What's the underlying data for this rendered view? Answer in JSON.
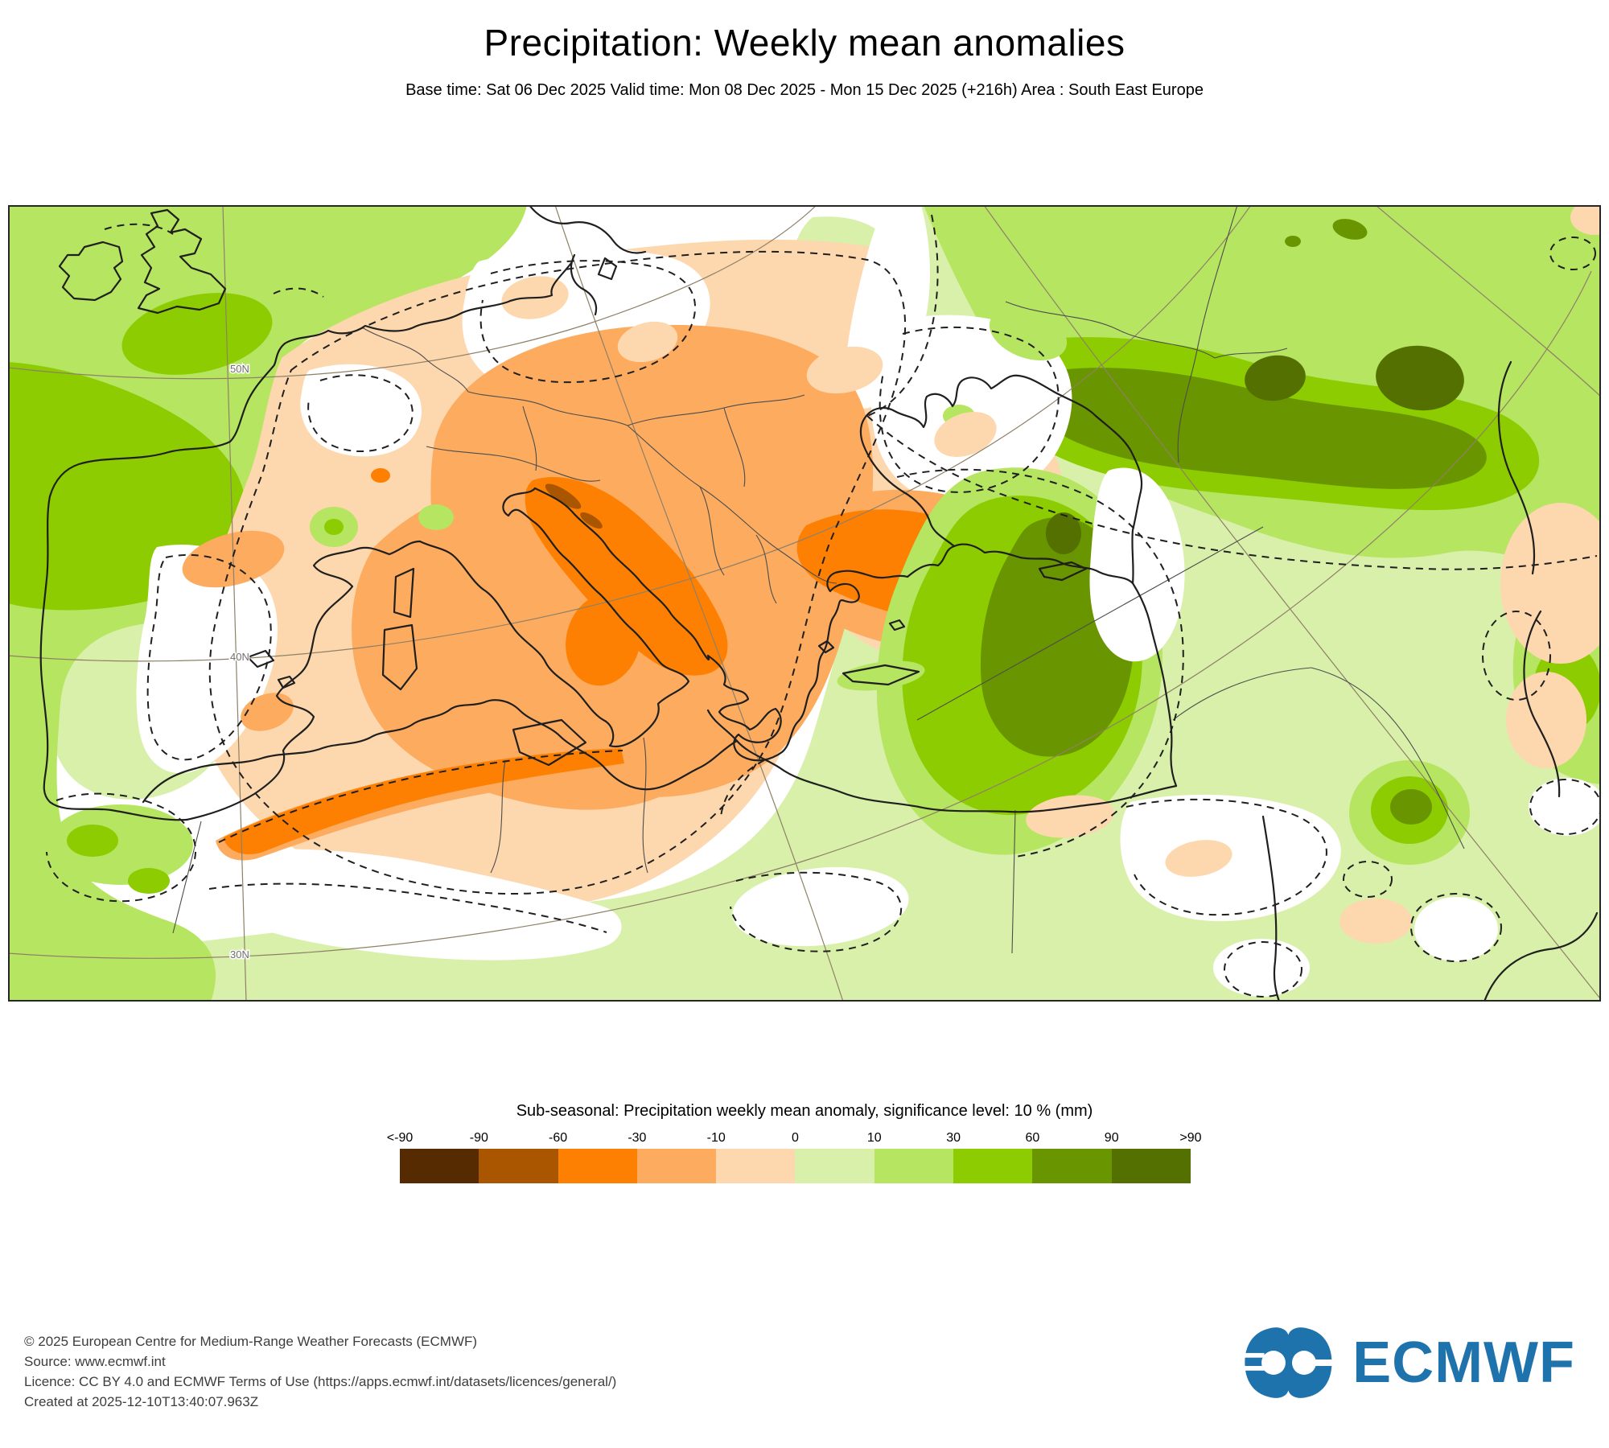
{
  "title": "Precipitation: Weekly mean anomalies",
  "subtitle": "Base time: Sat 06 Dec 2025 Valid time: Mon 08 Dec 2025 - Mon 15 Dec 2025 (+216h) Area : South East Europe",
  "map": {
    "grid_labels": [
      "50N",
      "40N",
      "30N"
    ],
    "fill_colors": {
      "anomaly_minus_90_plus": "#562b01",
      "anomaly_minus_90_to_60": "#aa5500",
      "anomaly_minus_60_to_30": "#fd8002",
      "anomaly_minus_30_to_10": "#fcab5f",
      "anomaly_minus_10_to_0": "#fdd7ad",
      "anomaly_0_to_10": "#d9f0aa",
      "anomaly_10_to_30": "#b6e561",
      "anomaly_30_to_60": "#8ccc00",
      "anomaly_60_to_90": "#699600",
      "anomaly_90_plus": "#537001"
    }
  },
  "legend": {
    "title": "Sub-seasonal: Precipitation weekly mean anomaly, significance level: 10 % (mm)",
    "ticks": [
      "<-90",
      "-90",
      "-60",
      "-30",
      "-10",
      "0",
      "10",
      "30",
      "60",
      "90",
      ">90"
    ],
    "colors": [
      "#562b01",
      "#aa5500",
      "#fd8002",
      "#fcab5f",
      "#fdd7ad",
      "#d9f0aa",
      "#b6e561",
      "#8ccc00",
      "#699600",
      "#537001"
    ]
  },
  "footer": {
    "lines": [
      "© 2025 European Centre for Medium-Range Weather Forecasts (ECMWF)",
      "Source: www.ecmwf.int",
      "Licence: CC BY 4.0 and ECMWF Terms of Use (https://apps.ecmwf.int/datasets/licences/general/)",
      "Created at 2025-12-10T13:40:07.963Z"
    ]
  },
  "logo": {
    "text": "ECMWF",
    "color": "#1f73ad"
  }
}
